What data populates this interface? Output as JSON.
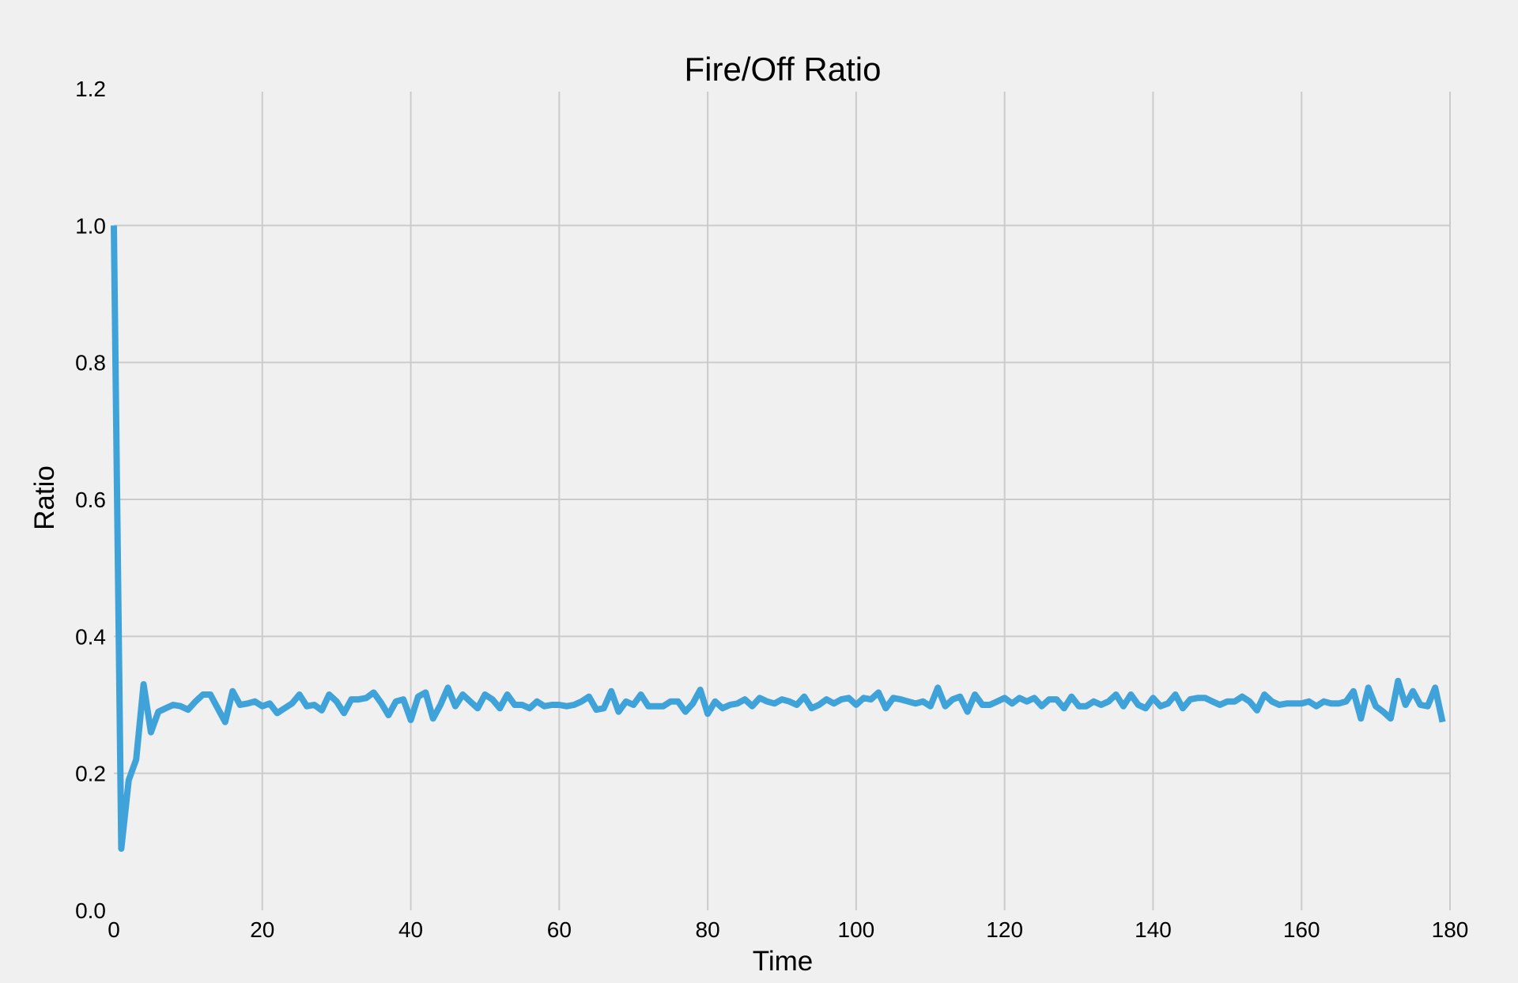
{
  "chart_data": {
    "type": "line",
    "title": "Fire/Off Ratio",
    "xlabel": "Time",
    "ylabel": "Ratio",
    "xlim": [
      0,
      180
    ],
    "ylim": [
      0.0,
      1.2
    ],
    "xticks": [
      0,
      20,
      40,
      60,
      80,
      100,
      120,
      140,
      160,
      180
    ],
    "xtick_labels": [
      "0",
      "20",
      "40",
      "60",
      "80",
      "100",
      "120",
      "140",
      "160",
      "180"
    ],
    "yticks": [
      0.0,
      0.2,
      0.4,
      0.6,
      0.8,
      1.0,
      1.2
    ],
    "ytick_labels": [
      "0.0",
      "0.2",
      "0.4",
      "0.6",
      "0.8",
      "1.0",
      "1.2"
    ],
    "grid": true,
    "colors": {
      "background": "#f0f0f0",
      "grid": "#cbcbcb",
      "series": "#3fa3d9"
    },
    "series": [
      {
        "color": "#3fa3d9",
        "x": [
          0,
          1,
          2,
          3,
          4,
          5,
          6,
          7,
          8,
          9,
          10,
          11,
          12,
          13,
          14,
          15,
          16,
          17,
          18,
          19,
          20,
          21,
          22,
          23,
          24,
          25,
          26,
          27,
          28,
          29,
          30,
          31,
          32,
          33,
          34,
          35,
          36,
          37,
          38,
          39,
          40,
          41,
          42,
          43,
          44,
          45,
          46,
          47,
          48,
          49,
          50,
          51,
          52,
          53,
          54,
          55,
          56,
          57,
          58,
          59,
          60,
          61,
          62,
          63,
          64,
          65,
          66,
          67,
          68,
          69,
          70,
          71,
          72,
          73,
          74,
          75,
          76,
          77,
          78,
          79,
          80,
          81,
          82,
          83,
          84,
          85,
          86,
          87,
          88,
          89,
          90,
          91,
          92,
          93,
          94,
          95,
          96,
          97,
          98,
          99,
          100,
          101,
          102,
          103,
          104,
          105,
          106,
          107,
          108,
          109,
          110,
          111,
          112,
          113,
          114,
          115,
          116,
          117,
          118,
          119,
          120,
          121,
          122,
          123,
          124,
          125,
          126,
          127,
          128,
          129,
          130,
          131,
          132,
          133,
          134,
          135,
          136,
          137,
          138,
          139,
          140,
          141,
          142,
          143,
          144,
          145,
          146,
          147,
          148,
          149,
          150,
          151,
          152,
          153,
          154,
          155,
          156,
          157,
          158,
          159,
          160,
          161,
          162,
          163,
          164,
          165,
          166,
          167,
          168,
          169,
          170,
          171,
          172,
          173,
          174,
          175,
          176,
          177,
          178,
          179
        ],
        "y": [
          1.0,
          0.09,
          0.19,
          0.22,
          0.33,
          0.26,
          0.29,
          0.295,
          0.3,
          0.298,
          0.293,
          0.305,
          0.315,
          0.315,
          0.295,
          0.275,
          0.32,
          0.3,
          0.302,
          0.305,
          0.298,
          0.302,
          0.288,
          0.295,
          0.302,
          0.315,
          0.298,
          0.3,
          0.292,
          0.315,
          0.305,
          0.288,
          0.308,
          0.308,
          0.31,
          0.318,
          0.303,
          0.285,
          0.305,
          0.308,
          0.278,
          0.312,
          0.318,
          0.28,
          0.3,
          0.325,
          0.298,
          0.315,
          0.305,
          0.295,
          0.315,
          0.308,
          0.295,
          0.315,
          0.3,
          0.3,
          0.295,
          0.305,
          0.298,
          0.3,
          0.3,
          0.298,
          0.3,
          0.305,
          0.312,
          0.293,
          0.295,
          0.32,
          0.29,
          0.305,
          0.3,
          0.315,
          0.298,
          0.298,
          0.298,
          0.305,
          0.305,
          0.29,
          0.302,
          0.322,
          0.287,
          0.305,
          0.295,
          0.3,
          0.302,
          0.308,
          0.298,
          0.31,
          0.305,
          0.302,
          0.308,
          0.305,
          0.3,
          0.312,
          0.295,
          0.3,
          0.308,
          0.302,
          0.308,
          0.31,
          0.3,
          0.31,
          0.308,
          0.318,
          0.295,
          0.31,
          0.308,
          0.305,
          0.302,
          0.305,
          0.298,
          0.325,
          0.298,
          0.308,
          0.312,
          0.29,
          0.315,
          0.3,
          0.3,
          0.305,
          0.31,
          0.302,
          0.31,
          0.305,
          0.31,
          0.298,
          0.308,
          0.308,
          0.295,
          0.312,
          0.298,
          0.298,
          0.305,
          0.3,
          0.305,
          0.315,
          0.298,
          0.315,
          0.3,
          0.295,
          0.31,
          0.298,
          0.302,
          0.315,
          0.295,
          0.308,
          0.31,
          0.31,
          0.305,
          0.3,
          0.305,
          0.305,
          0.312,
          0.305,
          0.292,
          0.315,
          0.305,
          0.3,
          0.302,
          0.302,
          0.302,
          0.305,
          0.298,
          0.305,
          0.302,
          0.302,
          0.305,
          0.32,
          0.28,
          0.325,
          0.298,
          0.29,
          0.28,
          0.335,
          0.3,
          0.32,
          0.3,
          0.298,
          0.325,
          0.275
        ]
      }
    ]
  }
}
